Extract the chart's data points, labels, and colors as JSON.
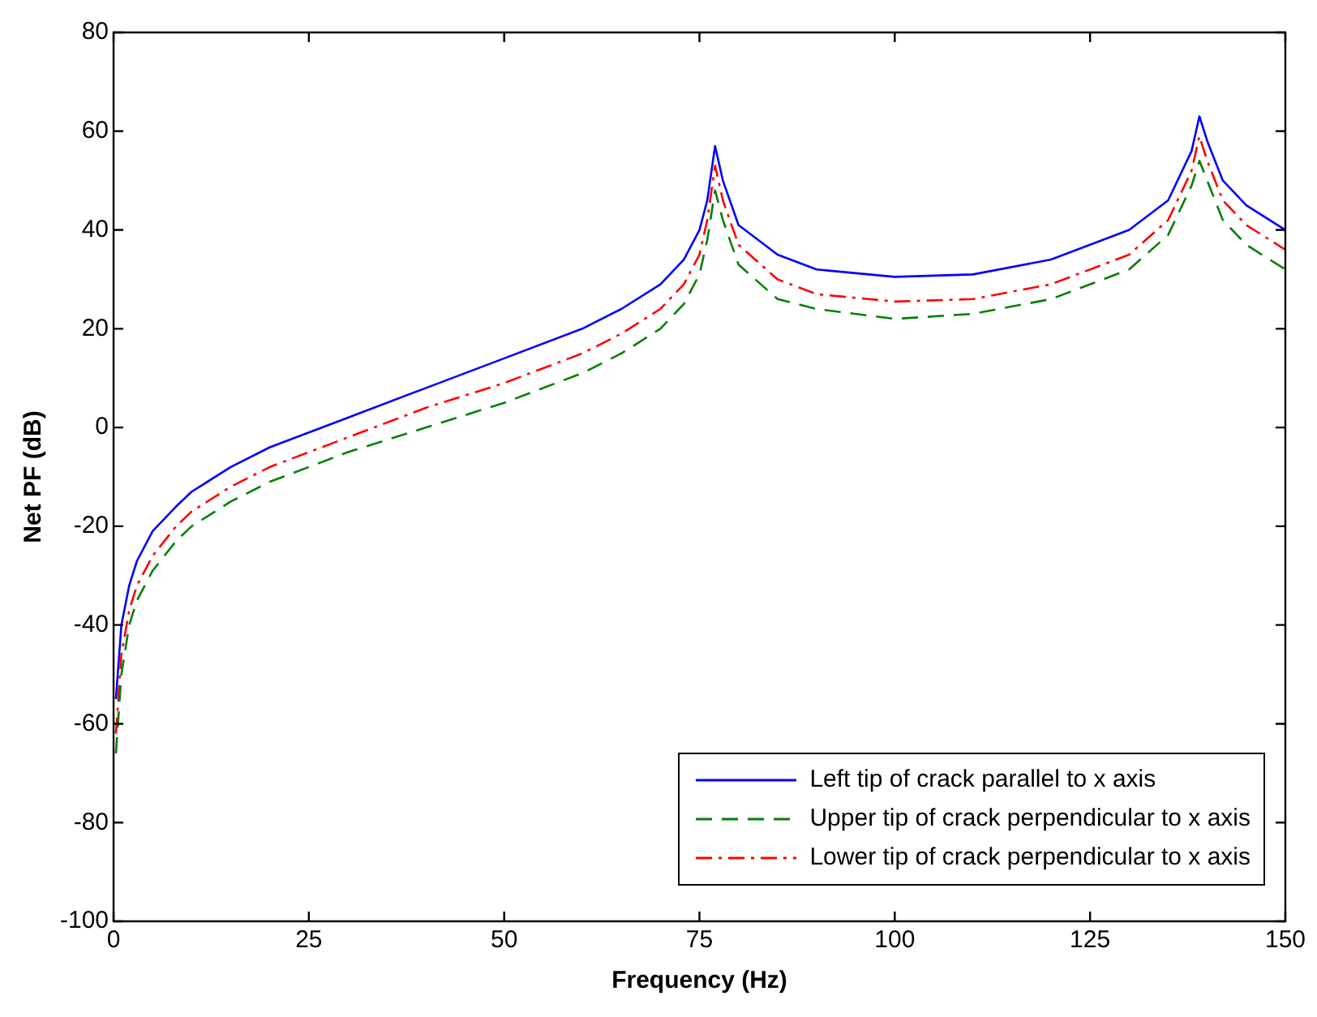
{
  "chart_data": {
    "type": "line",
    "xlabel": "Frequency (Hz)",
    "ylabel": "Net PF (dB)",
    "xlim": [
      0,
      150
    ],
    "xticks": [
      0,
      25,
      50,
      75,
      100,
      125,
      150
    ],
    "ylim": [
      -100,
      80
    ],
    "yticks": [
      -100,
      -80,
      -60,
      -40,
      -20,
      0,
      20,
      40,
      60,
      80
    ],
    "grid": false,
    "legend": "bottom right",
    "marker": "none",
    "x": [
      0.3,
      1,
      2,
      3,
      5,
      8,
      10,
      15,
      20,
      25,
      30,
      40,
      50,
      60,
      65,
      70,
      73,
      75,
      76,
      77,
      78,
      80,
      85,
      90,
      100,
      110,
      120,
      130,
      135,
      138,
      139,
      140,
      142,
      145,
      150
    ],
    "series": [
      {
        "name": "Left tip of crack parallel to x axis",
        "color": "#0000ff",
        "line_style": "solid",
        "values": [
          -55,
          -40,
          -32,
          -27,
          -21,
          -16,
          -13,
          -8,
          -4,
          -1,
          2,
          8,
          14,
          20,
          24,
          29,
          34,
          40,
          46,
          57,
          50,
          41,
          35,
          32,
          30.5,
          31,
          34,
          40,
          46,
          56,
          63,
          58,
          50,
          45,
          40
        ]
      },
      {
        "name": "Upper tip of crack perpendicular to x axis",
        "color": "#008000",
        "line_style": "dashed",
        "values": [
          -66,
          -50,
          -40,
          -35,
          -29,
          -23,
          -20,
          -15,
          -11,
          -8,
          -5,
          0,
          5,
          11,
          15,
          20,
          25,
          31,
          38,
          48,
          42,
          33,
          26,
          24,
          22,
          23,
          26,
          32,
          39,
          49,
          54,
          50,
          42,
          37,
          32
        ]
      },
      {
        "name": "Lower tip of crack perpendicular to x axis",
        "color": "#ff0000",
        "line_style": "dashdot",
        "values": [
          -62,
          -46,
          -37,
          -32,
          -26,
          -20,
          -17,
          -12,
          -8,
          -5,
          -2,
          4,
          9,
          15,
          19,
          24,
          29,
          35,
          42,
          53,
          46,
          37,
          30,
          27,
          25.5,
          26,
          29,
          35,
          42,
          52,
          59,
          54,
          46,
          41,
          36
        ]
      }
    ]
  }
}
